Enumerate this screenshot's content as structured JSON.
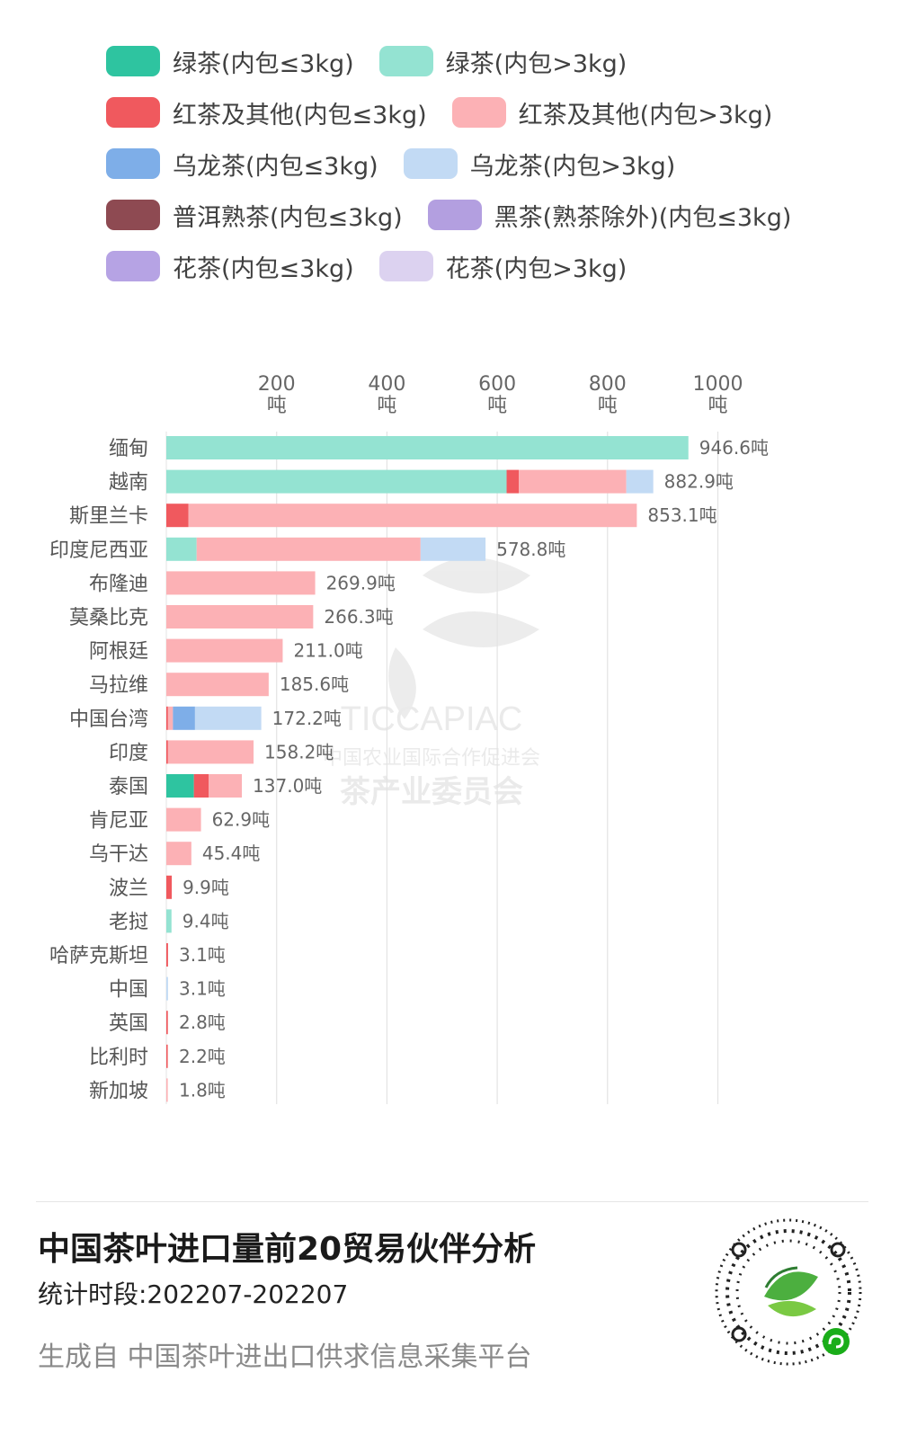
{
  "legend": [
    {
      "label": "绿茶(内包≤3kg)",
      "color": "#2ec4a0"
    },
    {
      "label": "绿茶(内包>3kg)",
      "color": "#94e3d2"
    },
    {
      "label": "红茶及其他(内包≤3kg)",
      "color": "#f0595e"
    },
    {
      "label": "红茶及其他(内包>3kg)",
      "color": "#fcb1b5"
    },
    {
      "label": "乌龙茶(内包≤3kg)",
      "color": "#7eaee8"
    },
    {
      "label": "乌龙茶(内包>3kg)",
      "color": "#c2daf4"
    },
    {
      "label": "普洱熟茶(内包≤3kg)",
      "color": "#8e4a52"
    },
    {
      "label": "黑茶(熟茶除外)(内包≤3kg)",
      "color": "#b39fe0"
    },
    {
      "label": "花茶(内包≤3kg)",
      "color": "#b6a3e4"
    },
    {
      "label": "花茶(内包>3kg)",
      "color": "#dcd2f0"
    }
  ],
  "chart_data": {
    "type": "bar",
    "orientation": "horizontal",
    "stacked": true,
    "xlim": [
      0,
      1000
    ],
    "x_ticks": [
      {
        "value": 200,
        "label": "200",
        "unit": "吨"
      },
      {
        "value": 400,
        "label": "400",
        "unit": "吨"
      },
      {
        "value": 600,
        "label": "600",
        "unit": "吨"
      },
      {
        "value": 800,
        "label": "800",
        "unit": "吨"
      },
      {
        "value": 1000,
        "label": "1000",
        "unit": "吨"
      }
    ],
    "grid": true,
    "legend_position": "top",
    "series_colors": [
      "#2ec4a0",
      "#94e3d2",
      "#f0595e",
      "#fcb1b5",
      "#7eaee8",
      "#c2daf4",
      "#8e4a52",
      "#b39fe0",
      "#b6a3e4",
      "#dcd2f0"
    ],
    "categories": [
      "缅甸",
      "越南",
      "斯里兰卡",
      "印度尼西亚",
      "布隆迪",
      "莫桑比克",
      "阿根廷",
      "马拉维",
      "中国台湾",
      "印度",
      "泰国",
      "肯尼亚",
      "乌干达",
      "波兰",
      "老挝",
      "哈萨克斯坦",
      "中国",
      "英国",
      "比利时",
      "新加坡"
    ],
    "stacks": [
      [
        0,
        946.6,
        0,
        0,
        0,
        0,
        0,
        0,
        0,
        0
      ],
      [
        0,
        617,
        22,
        195,
        0,
        48.9,
        0,
        0,
        0,
        0
      ],
      [
        0,
        0,
        40,
        813.1,
        0,
        0,
        0,
        0,
        0,
        0
      ],
      [
        0,
        55,
        0,
        406,
        0,
        117.8,
        0,
        0,
        0,
        0
      ],
      [
        0,
        0,
        0,
        269.9,
        0,
        0,
        0,
        0,
        0,
        0
      ],
      [
        0,
        0,
        0,
        266.3,
        0,
        0,
        0,
        0,
        0,
        0
      ],
      [
        0,
        0,
        0,
        211.0,
        0,
        0,
        0,
        0,
        0,
        0
      ],
      [
        0,
        0,
        0,
        185.6,
        0,
        0,
        0,
        0,
        0,
        0
      ],
      [
        0,
        0,
        3,
        9,
        40,
        120.2,
        0,
        0,
        0,
        0
      ],
      [
        0,
        0,
        3,
        155.2,
        0,
        0,
        0,
        0,
        0,
        0
      ],
      [
        50,
        0,
        27,
        60,
        0,
        0,
        0,
        0,
        0,
        0
      ],
      [
        0,
        0,
        0,
        62.9,
        0,
        0,
        0,
        0,
        0,
        0
      ],
      [
        0,
        0,
        0,
        45.4,
        0,
        0,
        0,
        0,
        0,
        0
      ],
      [
        0,
        0,
        9.9,
        0,
        0,
        0,
        0,
        0,
        0,
        0
      ],
      [
        0,
        9.4,
        0,
        0,
        0,
        0,
        0,
        0,
        0,
        0
      ],
      [
        0,
        0,
        3.1,
        0,
        0,
        0,
        0,
        0,
        0,
        0
      ],
      [
        0,
        0,
        0,
        0,
        0,
        3.1,
        0,
        0,
        0,
        0
      ],
      [
        0,
        0,
        2.8,
        0,
        0,
        0,
        0,
        0,
        0,
        0
      ],
      [
        0,
        0,
        2.2,
        0,
        0,
        0,
        0,
        0,
        0,
        0
      ],
      [
        0,
        0,
        0,
        1.8,
        0,
        0,
        0,
        0,
        0,
        0
      ]
    ],
    "totals": [
      946.6,
      882.9,
      853.1,
      578.8,
      269.9,
      266.3,
      211.0,
      185.6,
      172.2,
      158.2,
      137.0,
      62.9,
      45.4,
      9.9,
      9.4,
      3.1,
      3.1,
      2.8,
      2.2,
      1.8
    ],
    "value_labels": [
      "946.6吨",
      "882.9吨",
      "853.1吨",
      "578.8吨",
      "269.9吨",
      "266.3吨",
      "211.0吨",
      "185.6吨",
      "172.2吨",
      "158.2吨",
      "137.0吨",
      "62.9吨",
      "45.4吨",
      "9.9吨",
      "9.4吨",
      "3.1吨",
      "3.1吨",
      "2.8吨",
      "2.2吨",
      "1.8吨"
    ]
  },
  "watermark": {
    "brand": "TICCAPIAC",
    "line1": "中国农业国际合作促进会",
    "line2": "茶产业委员会"
  },
  "footer": {
    "title": "中国茶叶进口量前20贸易伙伴分析",
    "period": "统计时段:202207-202207",
    "source": "生成自 中国茶叶进出口供求信息采集平台"
  }
}
